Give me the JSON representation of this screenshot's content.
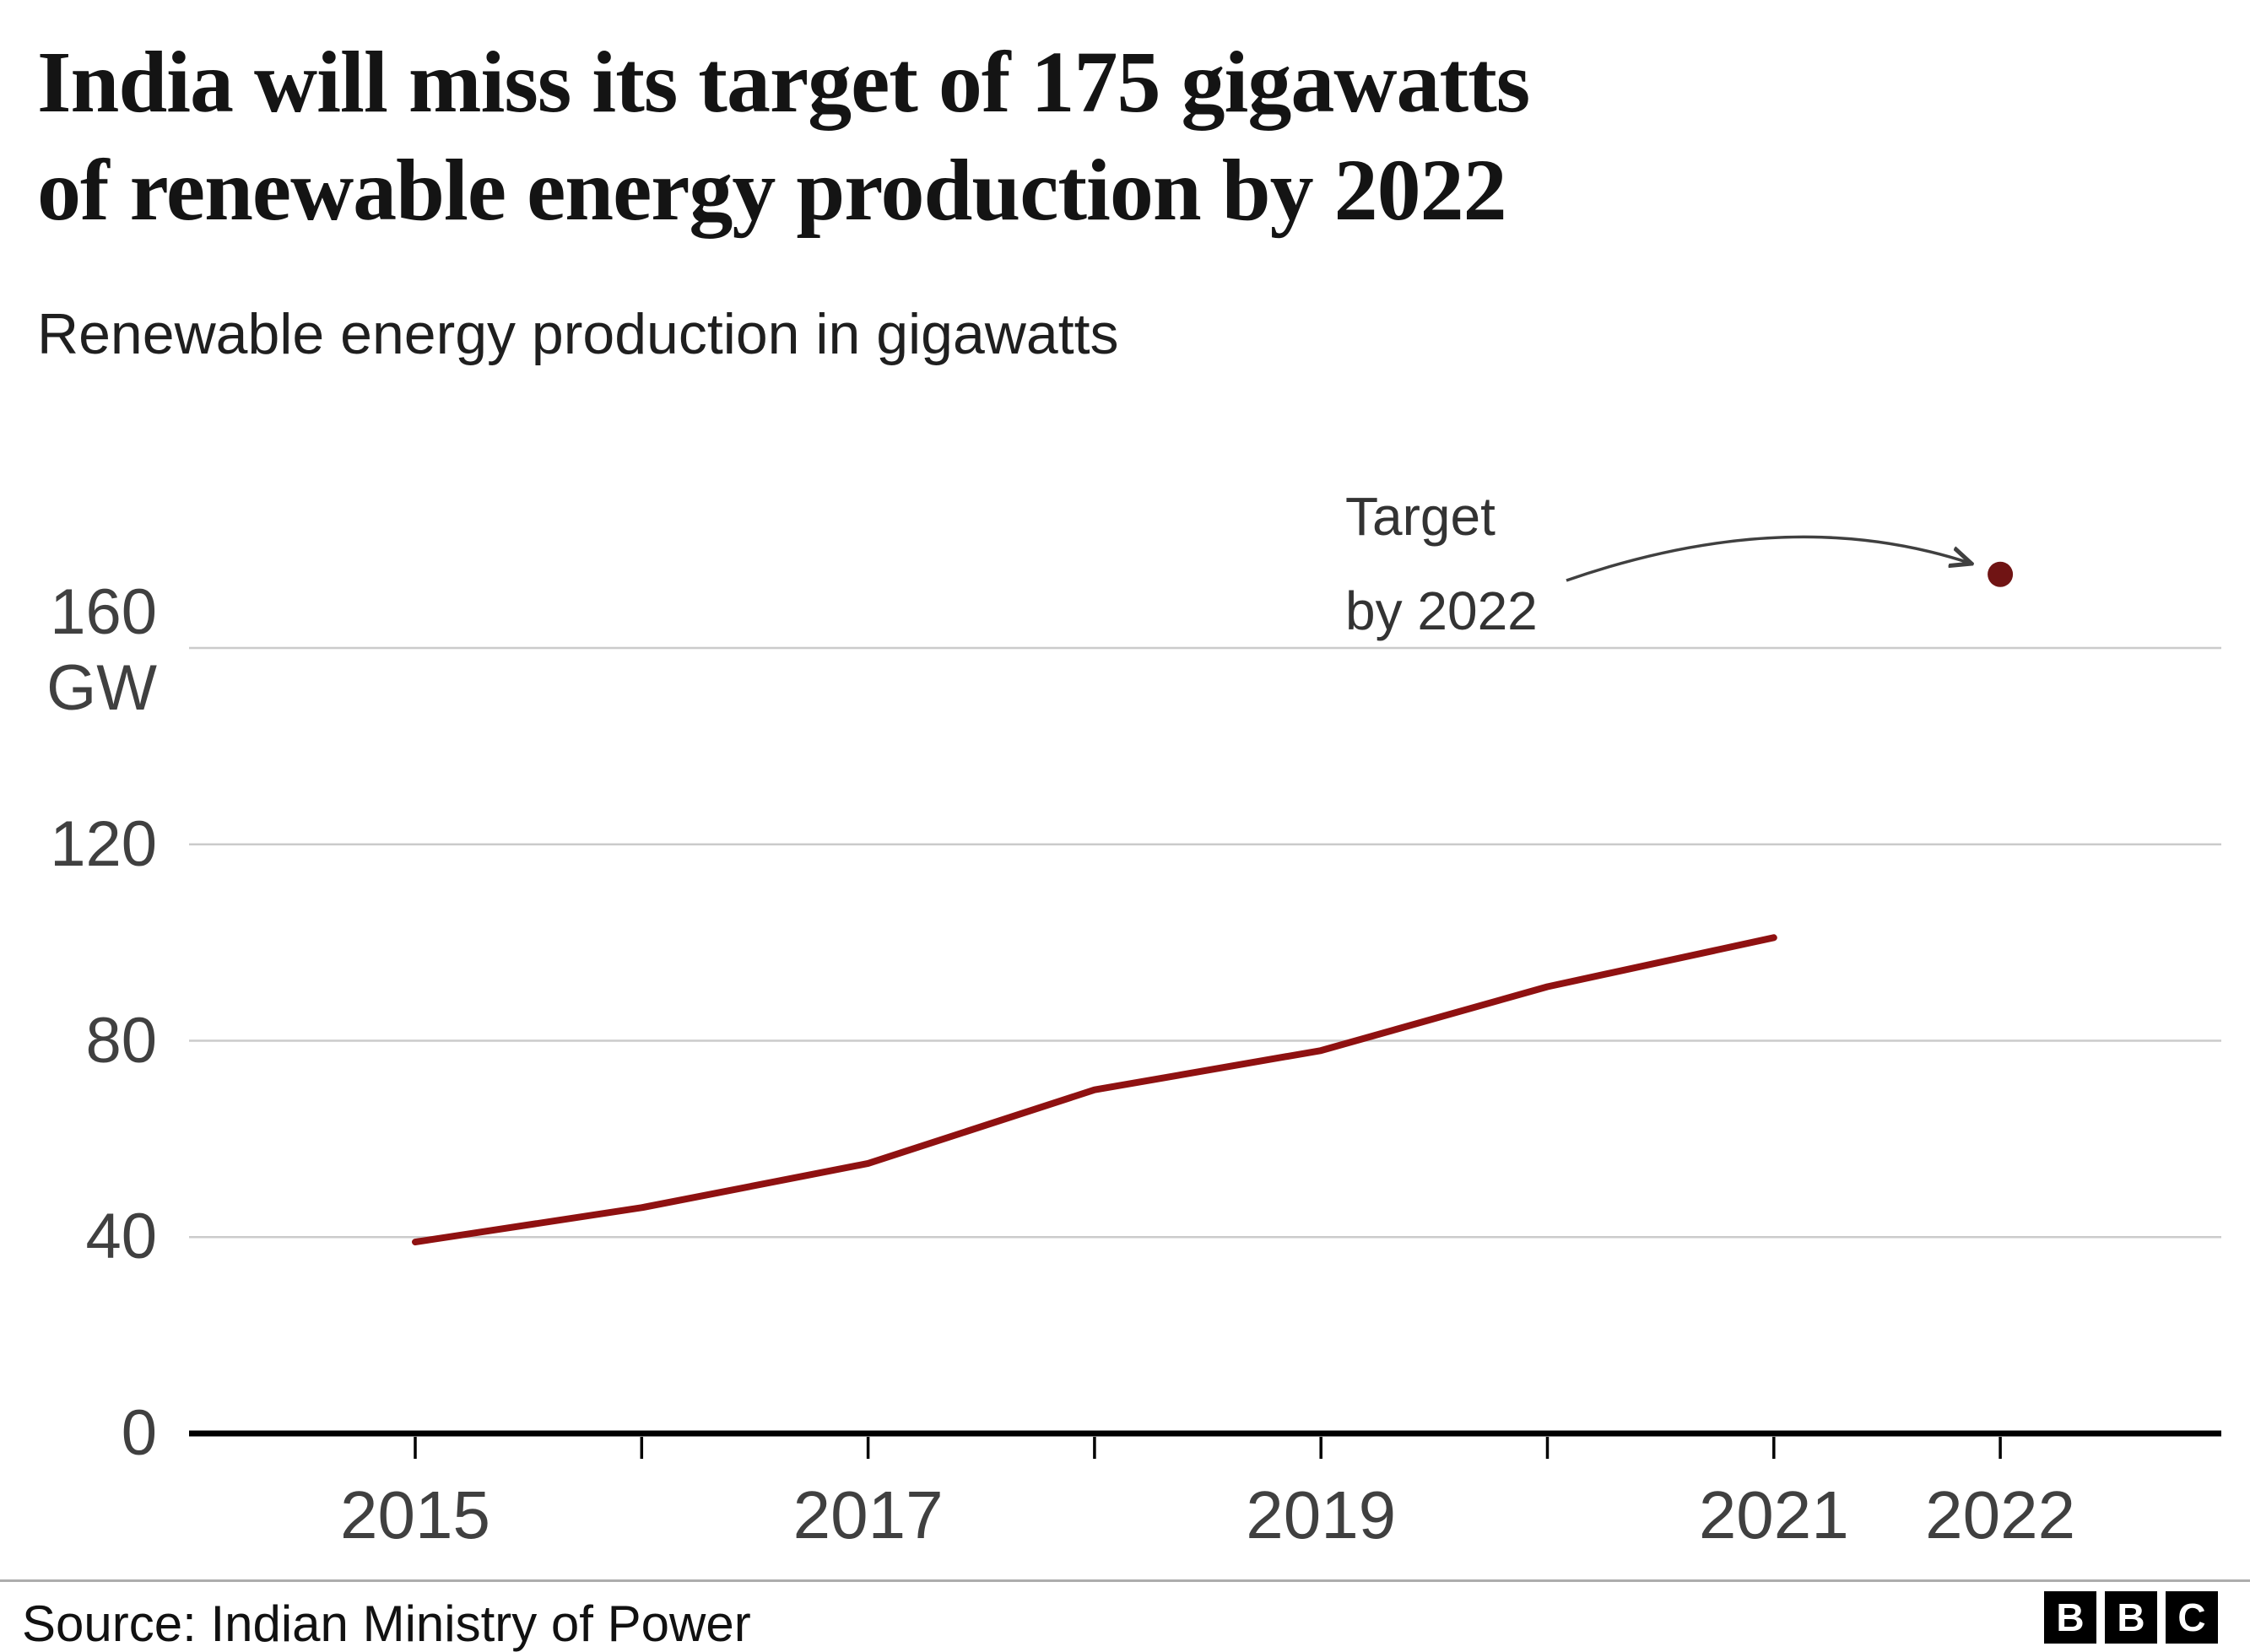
{
  "header": {
    "title_line1": "India will miss its target of 175 gigawatts",
    "title_line2": "of renewable energy production by 2022",
    "subtitle": "Renewable energy production in gigawatts"
  },
  "annotation": {
    "line1": "Target",
    "line2": "by 2022"
  },
  "footer": {
    "source": "Source: Indian Ministry of Power",
    "logo_letters": [
      "B",
      "B",
      "C"
    ]
  },
  "chart_data": {
    "type": "line",
    "title": "India will miss its target of 175 gigawatts of renewable energy production by 2022",
    "subtitle": "Renewable energy production in gigawatts",
    "x": [
      2015,
      2016,
      2017,
      2018,
      2019,
      2020,
      2021
    ],
    "series": [
      {
        "name": "Renewable energy production (GW)",
        "color": "#8f1111",
        "values": [
          39,
          46,
          55,
          70,
          78,
          91,
          101
        ]
      }
    ],
    "target_point": {
      "x": 2022,
      "value": 175,
      "label": "Target by 2022",
      "color": "#701414"
    },
    "yticks": [
      0,
      40,
      80,
      120,
      160
    ],
    "ylabel_unit": "GW",
    "xticks_all": [
      2015,
      2016,
      2017,
      2018,
      2019,
      2020,
      2021,
      2022
    ],
    "xtick_labels": [
      "2015",
      "2017",
      "2019",
      "2021",
      "2022"
    ],
    "ylim": [
      0,
      185
    ],
    "grid": "horizontal",
    "legend": "none",
    "colors": {
      "grid": "#cbcbcb",
      "axis": "#000000",
      "tick_text": "#404040",
      "annotation_arrow": "#404040"
    }
  }
}
